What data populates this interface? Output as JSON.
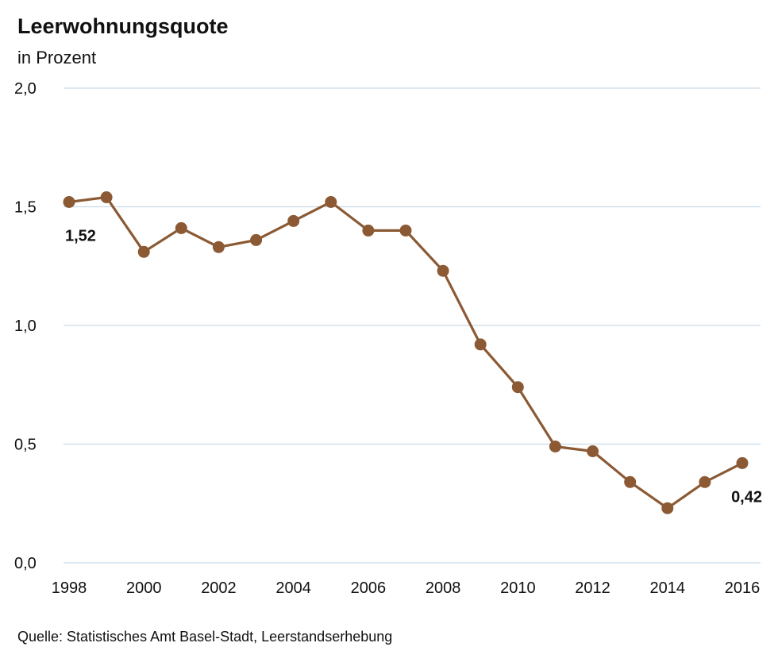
{
  "chart": {
    "title": "Leerwohnungsquote",
    "subtitle": "in Prozent",
    "source": "Quelle: Statistisches Amt Basel-Stadt, Leerstandserhebung"
  },
  "colors": {
    "series": "#8b5a34",
    "grid": "#c9dbe8",
    "text": "#111111"
  },
  "chart_data": {
    "type": "line",
    "title": "Leerwohnungsquote",
    "subtitle": "in Prozent",
    "xlabel": "",
    "ylabel": "",
    "x": [
      1998,
      1999,
      2000,
      2001,
      2002,
      2003,
      2004,
      2005,
      2006,
      2007,
      2008,
      2009,
      2010,
      2011,
      2012,
      2013,
      2014,
      2015,
      2016
    ],
    "series": [
      {
        "values": [
          1.52,
          1.54,
          1.31,
          1.41,
          1.33,
          1.36,
          1.44,
          1.52,
          1.4,
          1.4,
          1.23,
          0.92,
          0.74,
          0.49,
          0.47,
          0.34,
          0.23,
          0.34,
          0.42
        ]
      }
    ],
    "xticks": [
      "1998",
      "2000",
      "2002",
      "2004",
      "2006",
      "2008",
      "2010",
      "2012",
      "2014",
      "2016"
    ],
    "yticks": [
      "0,0",
      "0,5",
      "1,0",
      "1,5",
      "2,0"
    ],
    "ylim": [
      0,
      2
    ],
    "xlim": [
      1998,
      2016
    ],
    "grid": "horizontal",
    "legend": "none",
    "annotations": [
      {
        "x": 1998,
        "text": "1,52"
      },
      {
        "x": 2016,
        "text": "0,42"
      }
    ]
  }
}
